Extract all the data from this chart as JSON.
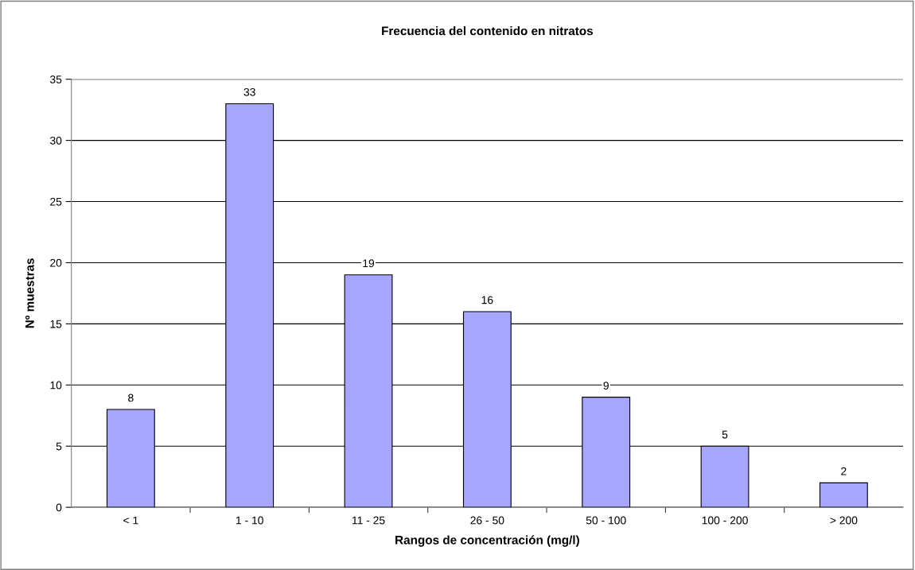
{
  "chart_data": {
    "type": "bar",
    "title": "Frecuencia del contenido en nitratos",
    "xlabel": "Rangos de concentración (mg/l)",
    "ylabel": "Nº muestras",
    "categories": [
      "< 1",
      "1 - 10",
      "11 - 25",
      "26 - 50",
      "50 - 100",
      "100 - 200",
      "> 200"
    ],
    "values": [
      8,
      33,
      19,
      16,
      9,
      5,
      2
    ],
    "color": "#a6a6ff",
    "ylim": [
      0,
      35
    ],
    "yticks": [
      0,
      5,
      10,
      15,
      20,
      25,
      30,
      35
    ],
    "grid": "y",
    "data_labels": true
  }
}
